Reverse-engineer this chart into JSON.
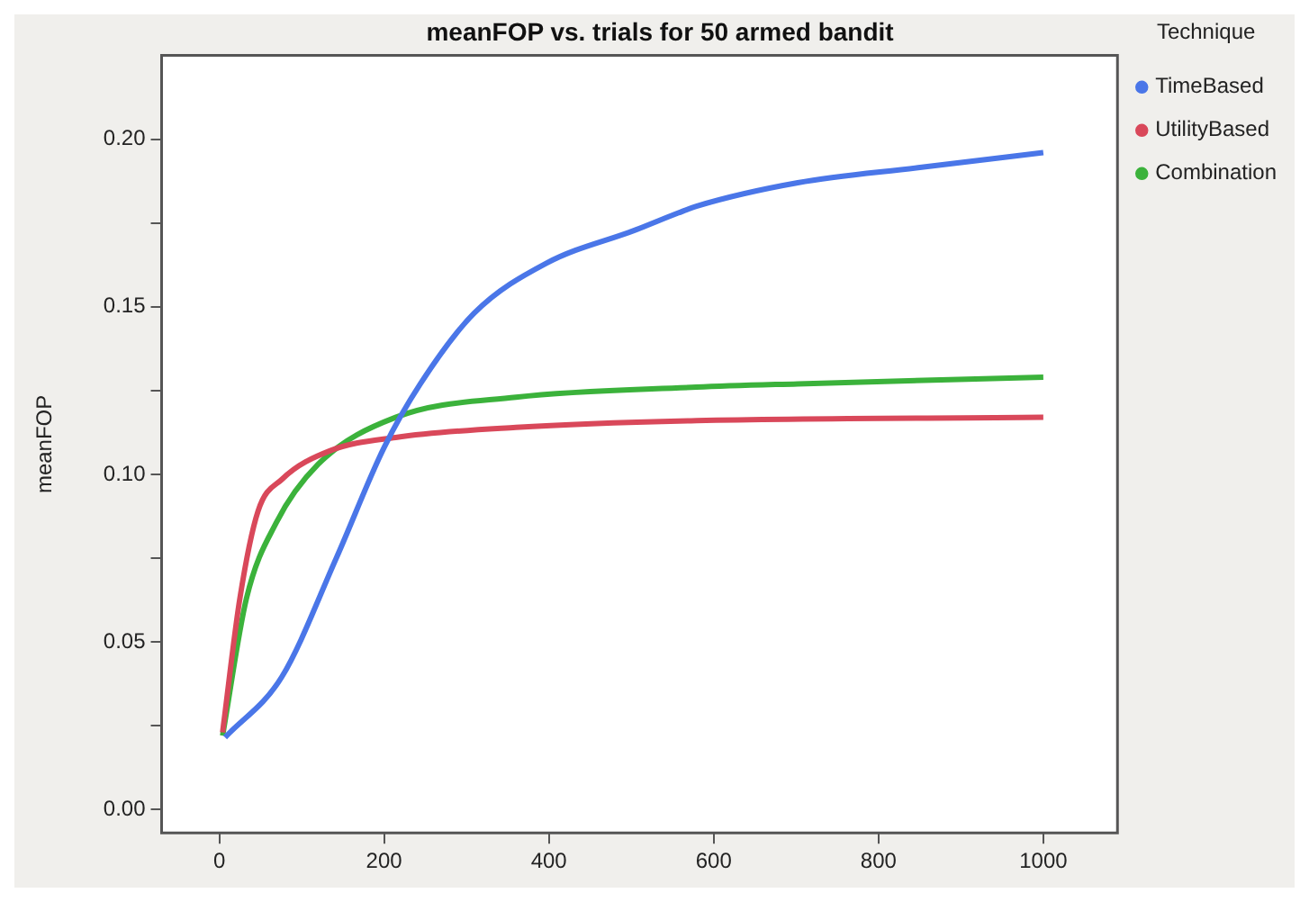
{
  "chart_data": {
    "type": "line",
    "title": "meanFOP vs. trials for 50 armed bandit",
    "ylabel": "meanFOP",
    "legend_title": "Technique",
    "legend": "right",
    "marker": "none",
    "line_style": "solid",
    "grid": false,
    "xlim": [
      -70,
      1090
    ],
    "xticks": [
      0,
      200,
      400,
      600,
      800,
      1000
    ],
    "ylim": [
      -0.007,
      0.225
    ],
    "yticks": [
      {
        "value": 0,
        "label": "0.00"
      },
      {
        "value": 0.025,
        "label": null
      },
      {
        "value": 0.05,
        "label": "0.05"
      },
      {
        "value": 0.075,
        "label": null
      },
      {
        "value": 0.1,
        "label": "0.10"
      },
      {
        "value": 0.125,
        "label": null
      },
      {
        "value": 0.15,
        "label": "0.15"
      },
      {
        "value": 0.175,
        "label": null
      },
      {
        "value": 0.2,
        "label": "0.20"
      }
    ],
    "series": [
      {
        "name": "TimeBased",
        "color": "#4a76e8",
        "x": [
          7,
          76,
          142,
          200,
          244,
          309,
          397,
          506,
          557,
          579,
          702,
          848,
          1000
        ],
        "values": [
          0.0215,
          0.0396,
          0.075,
          0.108,
          0.127,
          0.148,
          0.163,
          0.173,
          0.178,
          0.18,
          0.187,
          0.1915,
          0.196
        ]
      },
      {
        "name": "UtilityBased",
        "color": "#d9485a",
        "x": [
          4,
          25,
          47,
          76,
          134,
          214,
          360,
          579,
          1000
        ],
        "values": [
          0.023,
          0.063,
          0.089,
          0.0985,
          0.107,
          0.111,
          0.114,
          0.116,
          0.117
        ]
      },
      {
        "name": "Combination",
        "color": "#3bb23b",
        "x": [
          4,
          33,
          69,
          120,
          214,
          360,
          579,
          702,
          1000
        ],
        "values": [
          0.022,
          0.063,
          0.0855,
          0.103,
          0.117,
          0.123,
          0.126,
          0.127,
          0.129
        ]
      }
    ]
  }
}
